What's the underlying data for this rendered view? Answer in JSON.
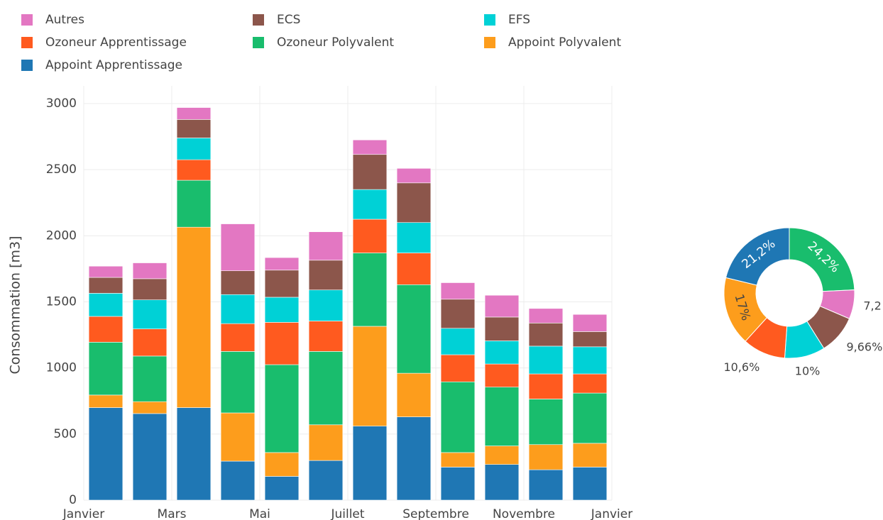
{
  "chart_data": [
    {
      "type": "bar",
      "stacked": true,
      "ylabel": "Consommation [m3]",
      "x": [
        0.5,
        1.5,
        2.5,
        3.5,
        4.5,
        5.5,
        6.5,
        7.5,
        8.5,
        9.5,
        10.5,
        11.5
      ],
      "xlim": [
        0,
        12
      ],
      "xticks": [
        {
          "value": 0,
          "label": "Janvier"
        },
        {
          "value": 2,
          "label": "Mars"
        },
        {
          "value": 4,
          "label": "Mai"
        },
        {
          "value": 6,
          "label": "Juillet"
        },
        {
          "value": 8,
          "label": "Septembre"
        },
        {
          "value": 10,
          "label": "Novembre"
        },
        {
          "value": 12,
          "label": "Janvier"
        }
      ],
      "ylim": [
        0,
        3000
      ],
      "yticks": [
        0,
        500,
        1000,
        1500,
        2000,
        2500,
        3000
      ],
      "grid": true,
      "legend": "top",
      "series": [
        {
          "name": "Appoint Apprentissage",
          "color": "#1f77b4",
          "values": [
            700,
            655,
            700,
            295,
            180,
            300,
            560,
            630,
            250,
            270,
            230,
            250
          ]
        },
        {
          "name": "Appoint Polyvalent",
          "color": "#fd9d1c",
          "values": [
            95,
            90,
            1365,
            365,
            180,
            270,
            755,
            330,
            110,
            140,
            190,
            180
          ]
        },
        {
          "name": "Ozoneur Polyvalent",
          "color": "#19bd6d",
          "values": [
            400,
            345,
            355,
            465,
            665,
            555,
            555,
            670,
            535,
            445,
            345,
            380
          ]
        },
        {
          "name": "Ozoneur Apprentissage",
          "color": "#ff5a1f",
          "values": [
            195,
            205,
            155,
            210,
            320,
            230,
            255,
            240,
            205,
            175,
            190,
            145
          ]
        },
        {
          "name": "EFS",
          "color": "#00d1d6",
          "values": [
            175,
            220,
            165,
            220,
            190,
            235,
            225,
            230,
            200,
            175,
            210,
            205
          ]
        },
        {
          "name": "ECS",
          "color": "#8c564b",
          "values": [
            120,
            160,
            140,
            180,
            205,
            225,
            265,
            300,
            220,
            180,
            175,
            115
          ]
        },
        {
          "name": "Autres",
          "color": "#e377c2",
          "values": [
            85,
            120,
            90,
            355,
            95,
            215,
            110,
            110,
            125,
            165,
            110,
            130
          ]
        }
      ]
    },
    {
      "type": "pie",
      "hole": true,
      "categories": [
        "Ozoneur Polyvalent",
        "Autres",
        "ECS",
        "EFS",
        "Ozoneur Apprentissage",
        "Appoint Polyvalent",
        "Appoint Apprentissage"
      ],
      "colors": [
        "#19bd6d",
        "#e377c2",
        "#8c564b",
        "#00d1d6",
        "#ff5a1f",
        "#fd9d1c",
        "#1f77b4"
      ],
      "values": [
        24.2,
        7.2,
        9.66,
        10,
        10.6,
        17,
        21.2
      ],
      "value_labels": [
        "24,2%",
        "7,2",
        "9,66%",
        "10%",
        "10,6%",
        "17%",
        "21,2%"
      ]
    }
  ]
}
